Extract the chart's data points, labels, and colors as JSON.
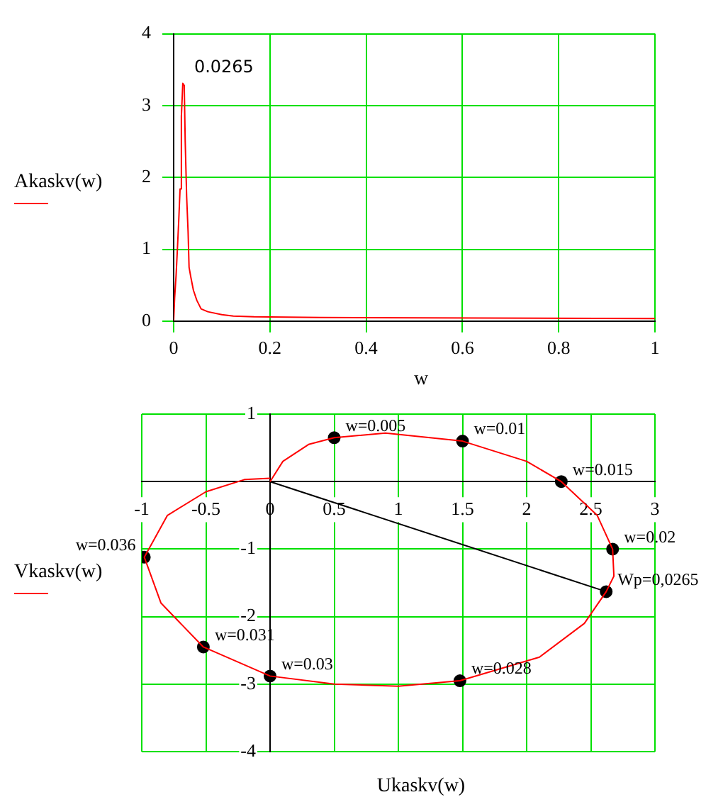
{
  "chart_data": [
    {
      "type": "line",
      "xlabel": "w",
      "ylabel": "Akaskv(w)",
      "xlim": [
        0,
        1
      ],
      "ylim": [
        0,
        4
      ],
      "xticks": [
        0,
        0.2,
        0.4,
        0.6,
        0.8,
        1
      ],
      "yticks": [
        0,
        1,
        2,
        3,
        4
      ],
      "grid": true,
      "legend": false,
      "marker": "none",
      "annotations": [
        {
          "text": "0.0265",
          "x": 0.019,
          "y": 3.31
        }
      ],
      "series": [
        {
          "color": "#ff0000",
          "x": [
            0,
            0.002,
            0.005,
            0.0076,
            0.0105,
            0.0133,
            0.016,
            0.019,
            0.022,
            0.024,
            0.027,
            0.03,
            0.032,
            0.036,
            0.041,
            0.048,
            0.057,
            0.071,
            0.1,
            0.124,
            0.167,
            0.305,
            1
          ],
          "values": [
            0,
            0.32,
            0.63,
            0.98,
            1.39,
            1.84,
            2.85,
            3.31,
            3.28,
            2.5,
            1.73,
            1.24,
            0.75,
            0.6,
            0.43,
            0.29,
            0.17,
            0.13,
            0.09,
            0.07,
            0.06,
            0.05,
            0.035
          ]
        }
      ]
    },
    {
      "type": "line",
      "xlabel": "Ukaskv(w)",
      "ylabel": "Vkaskv(w)",
      "xlim": [
        -1,
        3
      ],
      "ylim": [
        -4,
        1
      ],
      "xticks": [
        -1,
        -0.5,
        0,
        0.5,
        1,
        1.5,
        2,
        2.5,
        3
      ],
      "yticks": [
        -4,
        -3,
        -2,
        -1,
        1
      ],
      "grid": true,
      "legend": false,
      "annotations": [
        {
          "text": "w=0.005",
          "x": 0.5,
          "y": 0.65
        },
        {
          "text": "w=0.01",
          "x": 1.5,
          "y": 0.6
        },
        {
          "text": "w=0.015",
          "x": 2.27,
          "y": 0
        },
        {
          "text": "w=0.02",
          "x": 2.67,
          "y": -1
        },
        {
          "text": "Wp=0,0265",
          "x": 2.62,
          "y": -1.63
        },
        {
          "text": "w=0.028",
          "x": 1.48,
          "y": -2.95
        },
        {
          "text": "w=0.03",
          "x": 0,
          "y": -2.88
        },
        {
          "text": "w=0.031",
          "x": -0.52,
          "y": -2.45
        },
        {
          "text": "w=0.036",
          "x": -0.98,
          "y": -1.12
        }
      ],
      "series": [
        {
          "color": "#ff0000",
          "marker": "none",
          "x": [
            0,
            0.1,
            0.3,
            0.5,
            0.9,
            1.5,
            2,
            2.27,
            2.55,
            2.67,
            2.68,
            2.62,
            2.45,
            2.1,
            1.48,
            1,
            0.5,
            0,
            -0.52,
            -0.85,
            -0.98,
            -0.8,
            -0.5,
            -0.2,
            0
          ],
          "values": [
            0,
            0.3,
            0.55,
            0.65,
            0.72,
            0.6,
            0.3,
            0,
            -0.5,
            -1,
            -1.4,
            -1.63,
            -2.1,
            -2.6,
            -2.95,
            -3.03,
            -3,
            -2.88,
            -2.45,
            -1.8,
            -1.12,
            -0.5,
            -0.15,
            0.03,
            0.05
          ]
        },
        {
          "color": "#000000",
          "marker": "none",
          "x": [
            0,
            2.62
          ],
          "values": [
            0,
            -1.63
          ]
        },
        {
          "type": "scatter",
          "color": "#000000",
          "marker": "circle",
          "x": [
            0.5,
            1.5,
            2.27,
            2.67,
            2.62,
            1.48,
            0,
            -0.52,
            -0.98
          ],
          "values": [
            0.65,
            0.6,
            0,
            -1,
            -1.63,
            -2.95,
            -2.88,
            -2.45,
            -1.12
          ]
        }
      ]
    }
  ]
}
